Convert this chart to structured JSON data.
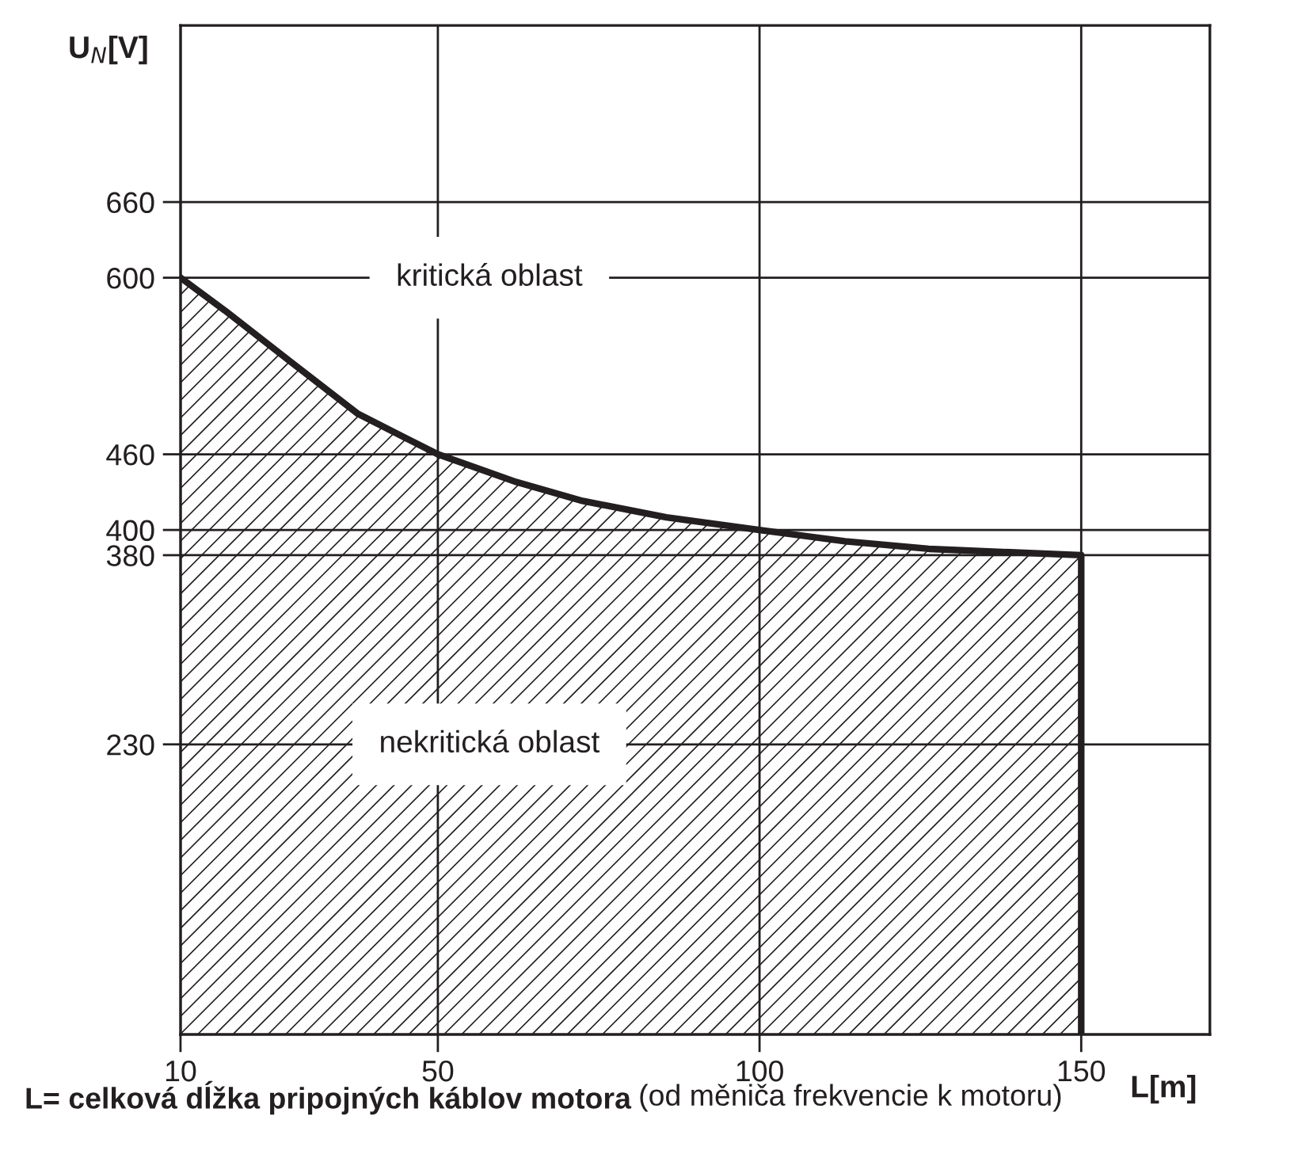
{
  "chart_data": {
    "type": "area",
    "xlabel": "L[m]",
    "ylabel": "U$_{N}$[V]",
    "x": [
      10,
      16.9,
      27.2,
      37.6,
      50,
      62.2,
      72.5,
      85.5,
      100,
      113.3,
      126.3,
      150,
      150
    ],
    "series": [
      {
        "color": "#231f20",
        "values": [
          600,
          574,
          533,
          492,
          460,
          438,
          423,
          410,
          400,
          391,
          385,
          380,
          0
        ]
      }
    ],
    "xlim": [
      10,
      170
    ],
    "xticks": [
      10,
      50,
      100,
      150
    ],
    "ylim": [
      0,
      800
    ],
    "yticks": [
      230,
      380,
      400,
      460,
      600,
      660
    ],
    "grid": true,
    "legend": false,
    "annotations": [
      "kritická oblast",
      "nekritická oblast",
      "L= celková dĺžka pripojných káblov motora",
      "(od měniča frekvencie k motoru)"
    ]
  }
}
